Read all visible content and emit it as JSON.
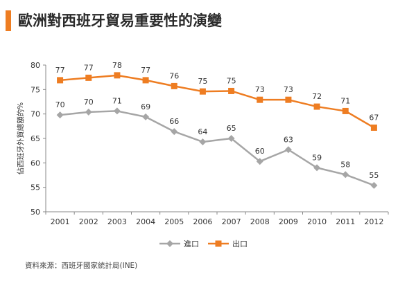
{
  "title": "歐洲對西班牙貿易重要性的演變",
  "source": "資料來源：西班牙國家統計局(INE)",
  "colors": {
    "accent": "#ee7d22",
    "import": "#a6a6a6",
    "export": "#ee7d22",
    "axis": "#888888"
  },
  "chart_data": {
    "type": "line",
    "title": "",
    "xlabel": "",
    "ylabel": "佔西班牙外貿總額的%",
    "ylim": [
      50,
      80
    ],
    "yticks": [
      50,
      55,
      60,
      65,
      70,
      75,
      80
    ],
    "grid": false,
    "legend": "bottom",
    "categories": [
      "2001",
      "2002",
      "2003",
      "2004",
      "2005",
      "2006",
      "2007",
      "2008",
      "2009",
      "2010",
      "2011",
      "2012"
    ],
    "series": [
      {
        "name": "進口",
        "color": "#a6a6a6",
        "marker": "diamond",
        "values": [
          69.8,
          70.4,
          70.6,
          69.4,
          66.4,
          64.3,
          65.0,
          60.3,
          62.7,
          59.0,
          57.6,
          55.4
        ],
        "labels": [
          "70",
          "70",
          "71",
          "69",
          "66",
          "64",
          "65",
          "60",
          "63",
          "59",
          "58",
          "55"
        ]
      },
      {
        "name": "出口",
        "color": "#ee7d22",
        "marker": "square",
        "values": [
          76.9,
          77.4,
          77.9,
          76.9,
          75.7,
          74.6,
          74.7,
          72.9,
          72.9,
          71.5,
          70.6,
          67.2
        ],
        "labels": [
          "77",
          "77",
          "78",
          "77",
          "76",
          "75",
          "75",
          "73",
          "73",
          "72",
          "71",
          "67"
        ]
      }
    ]
  }
}
